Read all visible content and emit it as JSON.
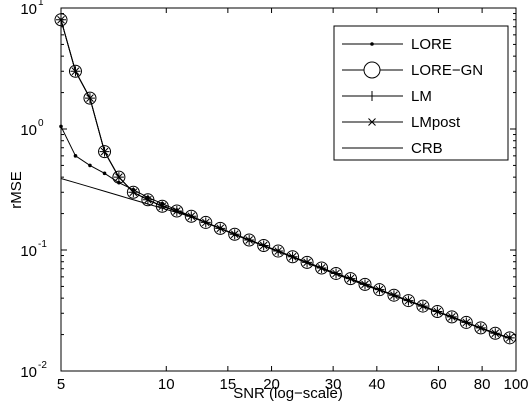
{
  "chart_data": {
    "type": "line",
    "xlabel": "SNR (log−scale)",
    "ylabel": "rMSE",
    "x_scale": "log",
    "y_scale": "log",
    "xlim": [
      5,
      100
    ],
    "ylim": [
      0.01,
      10
    ],
    "x_ticks": [
      5,
      10,
      15,
      20,
      30,
      40,
      60,
      80,
      100
    ],
    "x_tick_labels": [
      "5",
      "10",
      "15",
      "20",
      "30",
      "40",
      "60",
      "80",
      "100"
    ],
    "y_ticks": [
      0.01,
      0.1,
      1,
      10
    ],
    "y_tick_labels": [
      {
        "base": "10",
        "exp": "-2"
      },
      {
        "base": "10",
        "exp": "-1"
      },
      {
        "base": "10",
        "exp": "0"
      },
      {
        "base": "10",
        "exp": "1"
      }
    ],
    "grid": false,
    "legend_position": "top-right",
    "x": [
      5.0,
      5.5,
      6.05,
      6.66,
      7.32,
      8.05,
      8.86,
      9.74,
      10.72,
      11.79,
      12.97,
      14.27,
      15.69,
      17.26,
      18.99,
      20.89,
      22.97,
      25.27,
      27.8,
      30.58,
      33.64,
      37.0,
      40.7,
      44.77,
      49.25,
      54.17,
      59.59,
      65.55,
      72.1,
      79.31,
      87.25,
      95.97
    ],
    "series": [
      {
        "name": "LORE",
        "marker": "dot",
        "values": [
          1.05,
          0.6,
          0.5,
          0.43,
          0.36,
          0.315,
          0.272,
          0.242,
          0.214,
          0.19,
          0.169,
          0.151,
          0.135,
          0.121,
          0.109,
          0.098,
          0.088,
          0.079,
          0.071,
          0.064,
          0.058,
          0.052,
          0.047,
          0.0423,
          0.0382,
          0.0344,
          0.031,
          0.028,
          0.0252,
          0.0227,
          0.0205,
          0.0188
        ]
      },
      {
        "name": "LORE−GN",
        "marker": "circle",
        "values": [
          8.0,
          3.0,
          1.8,
          0.65,
          0.4,
          0.3,
          0.26,
          0.23,
          0.21,
          0.19,
          0.169,
          0.151,
          0.135,
          0.121,
          0.109,
          0.098,
          0.088,
          0.079,
          0.071,
          0.064,
          0.058,
          0.052,
          0.047,
          0.0423,
          0.0382,
          0.0344,
          0.031,
          0.028,
          0.0252,
          0.0227,
          0.0205,
          0.0188
        ]
      },
      {
        "name": "LM",
        "marker": "plus",
        "values": [
          8.0,
          3.0,
          1.8,
          0.65,
          0.4,
          0.3,
          0.26,
          0.23,
          0.21,
          0.19,
          0.169,
          0.151,
          0.135,
          0.121,
          0.109,
          0.098,
          0.088,
          0.079,
          0.071,
          0.064,
          0.058,
          0.052,
          0.047,
          0.0423,
          0.0382,
          0.0344,
          0.031,
          0.028,
          0.0252,
          0.0227,
          0.0205,
          0.0188
        ]
      },
      {
        "name": "LMpost",
        "marker": "x",
        "values": [
          8.0,
          3.0,
          1.8,
          0.65,
          0.4,
          0.3,
          0.26,
          0.23,
          0.21,
          0.19,
          0.169,
          0.151,
          0.135,
          0.121,
          0.109,
          0.098,
          0.088,
          0.079,
          0.071,
          0.064,
          0.058,
          0.052,
          0.047,
          0.0423,
          0.0382,
          0.0344,
          0.031,
          0.028,
          0.0252,
          0.0227,
          0.0205,
          0.0188
        ]
      },
      {
        "name": "CRB",
        "marker": "none",
        "values": [
          0.39,
          0.36,
          0.332,
          0.306,
          0.282,
          0.26,
          0.24,
          0.221,
          0.204,
          0.188,
          0.168,
          0.15,
          0.134,
          0.12,
          0.108,
          0.097,
          0.087,
          0.078,
          0.07,
          0.063,
          0.057,
          0.051,
          0.0465,
          0.0419,
          0.0378,
          0.034,
          0.0307,
          0.0277,
          0.025,
          0.0225,
          0.0203,
          0.0186
        ]
      }
    ]
  }
}
